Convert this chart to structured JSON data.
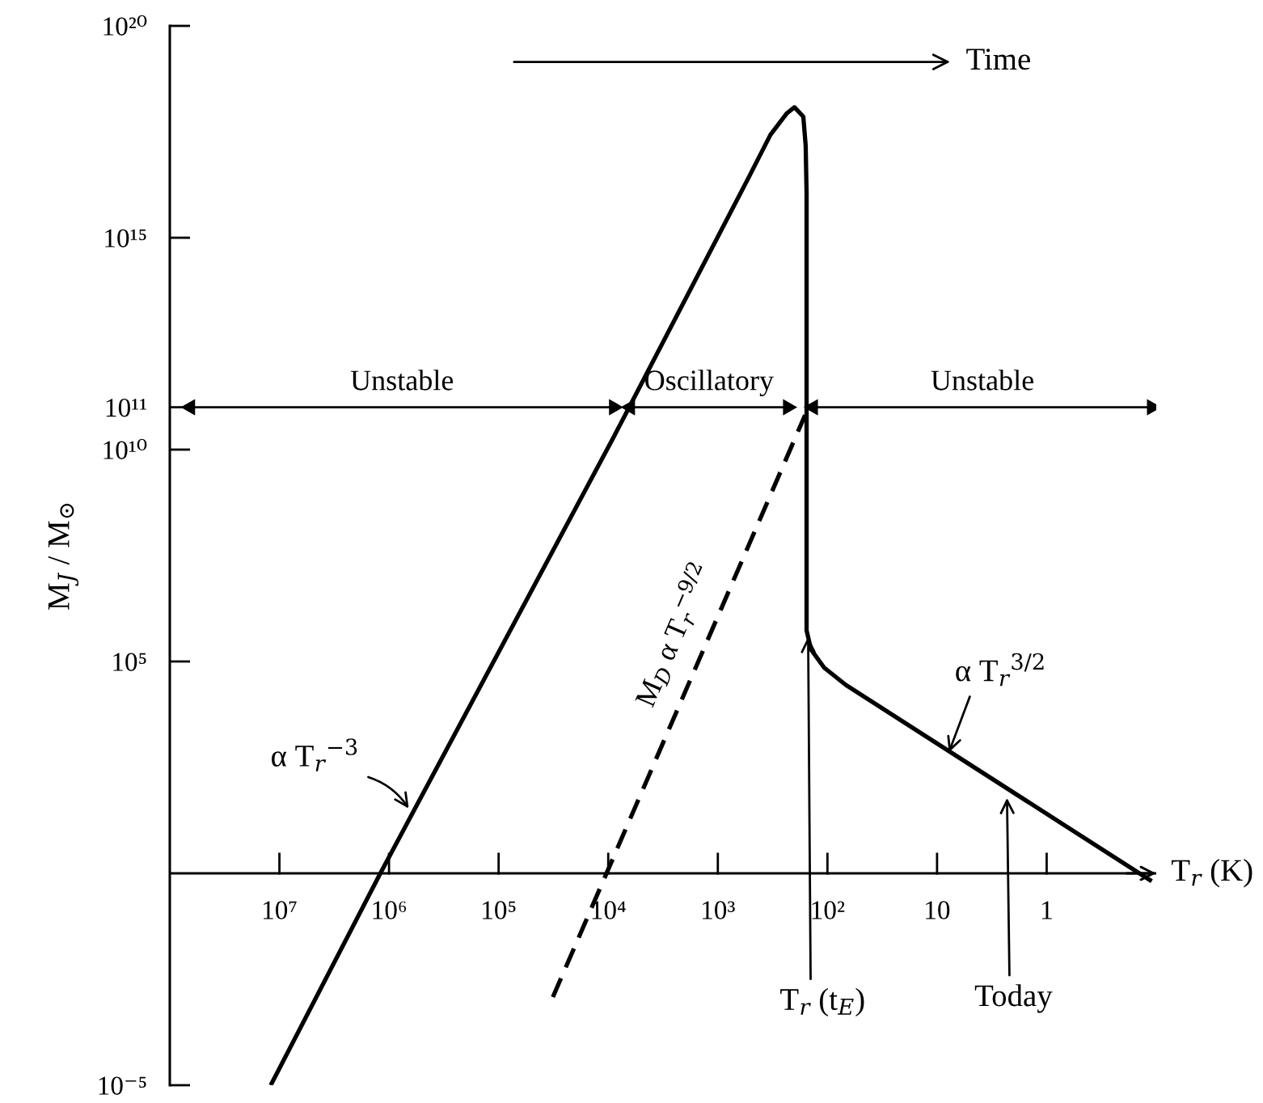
{
  "chart_data": {
    "type": "line",
    "xlabel": "T$_{r}$ (K)",
    "ylabel": "M$_{J}$ / M$_{⊙}$",
    "log": "xy",
    "xlim": [
      100000000.0,
      0.1
    ],
    "ylim": [
      1e-05,
      1e+20
    ],
    "xticks": [
      {
        "value": 10000000.0,
        "label": "10⁷"
      },
      {
        "value": 1000000.0,
        "label": "10⁶"
      },
      {
        "value": 100000.0,
        "label": "10⁵"
      },
      {
        "value": 10000.0,
        "label": "10⁴"
      },
      {
        "value": 1000.0,
        "label": "10³"
      },
      {
        "value": 100,
        "label": "10²"
      },
      10,
      1
    ],
    "yticks": [
      {
        "value": 1e-05,
        "label": "10⁻⁵"
      },
      {
        "value": 100000.0,
        "label": "10⁵"
      },
      {
        "value": 10000000000.0,
        "label": "10¹⁰"
      },
      {
        "value": 100000000000.0,
        "label": "10¹¹"
      },
      {
        "value": 1000000000000000.0,
        "label": "10¹⁵"
      },
      {
        "value": 1e+20,
        "label": "10²⁰"
      }
    ],
    "ref_lines": [
      {
        "axis": "y",
        "value": 1,
        "color": "#000000",
        "line_style": "solid"
      }
    ],
    "series": [
      {
        "color": "#000000",
        "line_style": "solid",
        "x": [
          12000000.0,
          1200000.0,
          8900,
          525,
          331,
          234,
          200,
          166,
          158,
          155,
          155,
          141,
          107,
          68,
          0.11
        ],
        "values": [
          1e-05,
          1,
          20000000000.0,
          2.6e+16,
          2.7e+17,
          8.7e+17,
          1.2e+18,
          7.2e+17,
          1.5e+17,
          1.1e+16,
          540000.0,
          190000.0,
          71000.0,
          28000.0,
          0.65
        ]
      },
      {
        "name": "M$_{D}$ α T$_{r}$$^{−9/2}$",
        "color": "#000000",
        "line_style": "dashed",
        "x": [
          32000,
          160
        ],
        "values": [
          0.0012,
          65000000000.0
        ]
      },
      {
        "name": "Unstable",
        "color": "#000000",
        "line_style": "solid",
        "marker": "triangle",
        "x": [
          65000000.0,
          8900
        ],
        "values": [
          100000000000.0,
          100000000000.0
        ]
      },
      {
        "name": "Oscillatory",
        "color": "#000000",
        "line_style": "solid",
        "marker": "triangle",
        "x": [
          6300,
          230
        ],
        "values": [
          100000000000.0,
          100000000000.0
        ]
      },
      {
        "name": "Unstable",
        "color": "#000000",
        "line_style": "solid",
        "marker": "triangle",
        "x": [
          135,
          0.11
        ],
        "values": [
          100000000000.0,
          100000000000.0
        ]
      }
    ],
    "annotations": [
      "Time",
      {
        "text": "α T$_{r}$$^{−3}$",
        "x": 660000,
        "y": 34
      },
      {
        "text": "α T$_{r}$$^{3/2}$",
        "x": 7.8,
        "y": 720
      },
      {
        "text": "T$_{r}$ (t$_{E}$)",
        "x": 150,
        "y": 380000
      },
      {
        "text": "Today",
        "x": 2.3,
        "y": 60
      }
    ]
  }
}
